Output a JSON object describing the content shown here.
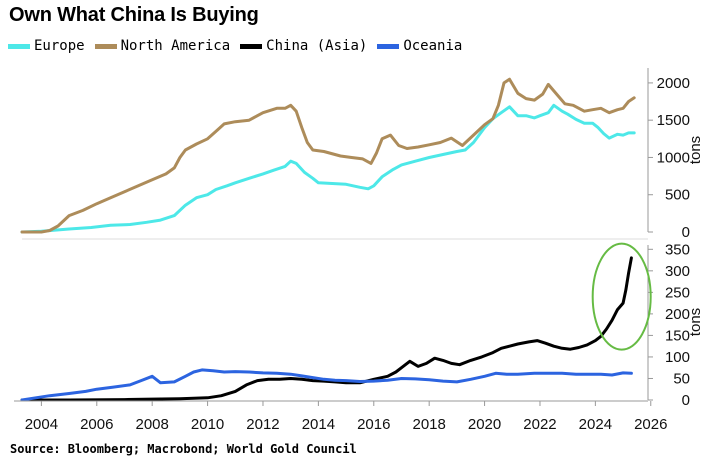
{
  "header": {
    "title": "Own What China Is Buying"
  },
  "footer": {
    "source": "Source: Bloomberg; Macrobond; World Gold Council"
  },
  "chart_data": [
    {
      "type": "line",
      "title": "Own What China Is Buying",
      "ylabel": "tons",
      "ylim": [
        0,
        2200
      ],
      "xlim": [
        2003.3,
        2025.9
      ],
      "yticks": [
        0,
        500,
        1000,
        1500,
        2000
      ],
      "grid": false,
      "legend_position": "top-left",
      "series": [
        {
          "name": "Europe",
          "color": "#4de8e8",
          "points": [
            [
              2003.3,
              0
            ],
            [
              2004.0,
              10
            ],
            [
              2005.0,
              40
            ],
            [
              2005.8,
              60
            ],
            [
              2006.5,
              90
            ],
            [
              2007.2,
              100
            ],
            [
              2007.8,
              130
            ],
            [
              2008.3,
              160
            ],
            [
              2008.8,
              220
            ],
            [
              2009.2,
              360
            ],
            [
              2009.6,
              460
            ],
            [
              2010.0,
              500
            ],
            [
              2010.3,
              570
            ],
            [
              2010.7,
              620
            ],
            [
              2011.0,
              660
            ],
            [
              2011.5,
              720
            ],
            [
              2012.0,
              780
            ],
            [
              2012.4,
              830
            ],
            [
              2012.8,
              880
            ],
            [
              2013.0,
              950
            ],
            [
              2013.2,
              920
            ],
            [
              2013.5,
              800
            ],
            [
              2013.8,
              720
            ],
            [
              2014.0,
              660
            ],
            [
              2014.5,
              650
            ],
            [
              2015.0,
              640
            ],
            [
              2015.5,
              600
            ],
            [
              2015.8,
              580
            ],
            [
              2016.0,
              620
            ],
            [
              2016.3,
              740
            ],
            [
              2016.7,
              840
            ],
            [
              2017.0,
              900
            ],
            [
              2017.5,
              950
            ],
            [
              2018.0,
              1000
            ],
            [
              2018.5,
              1040
            ],
            [
              2019.0,
              1080
            ],
            [
              2019.3,
              1100
            ],
            [
              2019.6,
              1200
            ],
            [
              2020.0,
              1400
            ],
            [
              2020.3,
              1520
            ],
            [
              2020.6,
              1600
            ],
            [
              2020.9,
              1680
            ],
            [
              2021.2,
              1560
            ],
            [
              2021.5,
              1560
            ],
            [
              2021.8,
              1530
            ],
            [
              2022.0,
              1560
            ],
            [
              2022.3,
              1600
            ],
            [
              2022.5,
              1700
            ],
            [
              2022.8,
              1620
            ],
            [
              2023.0,
              1580
            ],
            [
              2023.3,
              1510
            ],
            [
              2023.6,
              1460
            ],
            [
              2023.9,
              1460
            ],
            [
              2024.1,
              1400
            ],
            [
              2024.3,
              1320
            ],
            [
              2024.5,
              1260
            ],
            [
              2024.8,
              1310
            ],
            [
              2025.0,
              1300
            ],
            [
              2025.2,
              1330
            ],
            [
              2025.4,
              1330
            ]
          ]
        },
        {
          "name": "North America",
          "color": "#ad8c5a",
          "points": [
            [
              2003.3,
              0
            ],
            [
              2004.0,
              0
            ],
            [
              2004.3,
              20
            ],
            [
              2004.6,
              80
            ],
            [
              2005.0,
              220
            ],
            [
              2005.5,
              290
            ],
            [
              2006.0,
              380
            ],
            [
              2006.5,
              460
            ],
            [
              2007.0,
              540
            ],
            [
              2007.5,
              620
            ],
            [
              2008.0,
              700
            ],
            [
              2008.5,
              780
            ],
            [
              2008.8,
              860
            ],
            [
              2009.0,
              1000
            ],
            [
              2009.2,
              1100
            ],
            [
              2009.6,
              1180
            ],
            [
              2010.0,
              1250
            ],
            [
              2010.3,
              1350
            ],
            [
              2010.6,
              1450
            ],
            [
              2011.0,
              1480
            ],
            [
              2011.5,
              1500
            ],
            [
              2011.8,
              1560
            ],
            [
              2012.0,
              1600
            ],
            [
              2012.5,
              1660
            ],
            [
              2012.8,
              1660
            ],
            [
              2013.0,
              1700
            ],
            [
              2013.2,
              1620
            ],
            [
              2013.4,
              1400
            ],
            [
              2013.6,
              1200
            ],
            [
              2013.8,
              1100
            ],
            [
              2014.2,
              1080
            ],
            [
              2014.8,
              1020
            ],
            [
              2015.2,
              1000
            ],
            [
              2015.6,
              980
            ],
            [
              2015.9,
              920
            ],
            [
              2016.1,
              1060
            ],
            [
              2016.3,
              1250
            ],
            [
              2016.6,
              1300
            ],
            [
              2016.9,
              1160
            ],
            [
              2017.2,
              1120
            ],
            [
              2017.6,
              1140
            ],
            [
              2018.0,
              1170
            ],
            [
              2018.4,
              1200
            ],
            [
              2018.8,
              1260
            ],
            [
              2019.2,
              1160
            ],
            [
              2019.6,
              1300
            ],
            [
              2020.0,
              1440
            ],
            [
              2020.3,
              1520
            ],
            [
              2020.5,
              1700
            ],
            [
              2020.7,
              2000
            ],
            [
              2020.9,
              2050
            ],
            [
              2021.2,
              1860
            ],
            [
              2021.5,
              1790
            ],
            [
              2021.8,
              1770
            ],
            [
              2022.1,
              1850
            ],
            [
              2022.3,
              1980
            ],
            [
              2022.6,
              1850
            ],
            [
              2022.9,
              1720
            ],
            [
              2023.2,
              1700
            ],
            [
              2023.6,
              1620
            ],
            [
              2023.9,
              1640
            ],
            [
              2024.2,
              1660
            ],
            [
              2024.5,
              1600
            ],
            [
              2024.8,
              1640
            ],
            [
              2025.0,
              1660
            ],
            [
              2025.2,
              1750
            ],
            [
              2025.4,
              1800
            ]
          ]
        }
      ]
    },
    {
      "type": "line",
      "ylabel": "tons",
      "ylim": [
        0,
        360
      ],
      "xlim": [
        2003.3,
        2025.9
      ],
      "yticks": [
        0,
        50,
        100,
        150,
        200,
        250,
        300,
        350
      ],
      "xticks": [
        2004,
        2006,
        2008,
        2010,
        2012,
        2014,
        2016,
        2018,
        2020,
        2022,
        2024,
        2026
      ],
      "grid": false,
      "annotation": "green ellipse highlighting China (Asia) surge 2024-2025",
      "series": [
        {
          "name": "China (Asia)",
          "color": "#000000",
          "points": [
            [
              2003.3,
              0
            ],
            [
              2005.0,
              0
            ],
            [
              2007.0,
              1
            ],
            [
              2008.0,
              2
            ],
            [
              2009.0,
              3
            ],
            [
              2010.0,
              5
            ],
            [
              2010.5,
              10
            ],
            [
              2011.0,
              20
            ],
            [
              2011.4,
              35
            ],
            [
              2011.8,
              45
            ],
            [
              2012.2,
              48
            ],
            [
              2012.6,
              48
            ],
            [
              2013.0,
              50
            ],
            [
              2013.4,
              48
            ],
            [
              2013.8,
              45
            ],
            [
              2014.2,
              44
            ],
            [
              2014.6,
              42
            ],
            [
              2015.0,
              40
            ],
            [
              2015.5,
              40
            ],
            [
              2016.0,
              48
            ],
            [
              2016.5,
              55
            ],
            [
              2016.8,
              65
            ],
            [
              2017.0,
              75
            ],
            [
              2017.3,
              90
            ],
            [
              2017.6,
              78
            ],
            [
              2017.9,
              85
            ],
            [
              2018.2,
              97
            ],
            [
              2018.5,
              92
            ],
            [
              2018.8,
              85
            ],
            [
              2019.1,
              82
            ],
            [
              2019.5,
              92
            ],
            [
              2019.9,
              100
            ],
            [
              2020.3,
              110
            ],
            [
              2020.6,
              120
            ],
            [
              2020.9,
              125
            ],
            [
              2021.2,
              130
            ],
            [
              2021.6,
              135
            ],
            [
              2021.9,
              138
            ],
            [
              2022.2,
              132
            ],
            [
              2022.5,
              125
            ],
            [
              2022.8,
              120
            ],
            [
              2023.1,
              118
            ],
            [
              2023.4,
              122
            ],
            [
              2023.7,
              128
            ],
            [
              2024.0,
              138
            ],
            [
              2024.2,
              148
            ],
            [
              2024.4,
              165
            ],
            [
              2024.6,
              185
            ],
            [
              2024.8,
              210
            ],
            [
              2025.0,
              225
            ],
            [
              2025.1,
              255
            ],
            [
              2025.2,
              295
            ],
            [
              2025.3,
              330
            ]
          ]
        },
        {
          "name": "Oceania",
          "color": "#2c64e0",
          "points": [
            [
              2003.3,
              0
            ],
            [
              2003.8,
              5
            ],
            [
              2004.3,
              10
            ],
            [
              2005.0,
              15
            ],
            [
              2005.6,
              20
            ],
            [
              2006.0,
              25
            ],
            [
              2006.6,
              30
            ],
            [
              2007.2,
              35
            ],
            [
              2007.6,
              45
            ],
            [
              2008.0,
              55
            ],
            [
              2008.3,
              40
            ],
            [
              2008.8,
              42
            ],
            [
              2009.2,
              55
            ],
            [
              2009.5,
              65
            ],
            [
              2009.8,
              70
            ],
            [
              2010.2,
              68
            ],
            [
              2010.6,
              65
            ],
            [
              2011.0,
              66
            ],
            [
              2011.5,
              65
            ],
            [
              2012.0,
              63
            ],
            [
              2012.5,
              62
            ],
            [
              2013.0,
              60
            ],
            [
              2013.4,
              56
            ],
            [
              2013.8,
              52
            ],
            [
              2014.2,
              48
            ],
            [
              2014.6,
              46
            ],
            [
              2015.0,
              45
            ],
            [
              2015.5,
              43
            ],
            [
              2016.0,
              44
            ],
            [
              2016.5,
              46
            ],
            [
              2017.0,
              50
            ],
            [
              2017.5,
              49
            ],
            [
              2018.0,
              47
            ],
            [
              2018.5,
              44
            ],
            [
              2019.0,
              42
            ],
            [
              2019.5,
              48
            ],
            [
              2020.0,
              55
            ],
            [
              2020.4,
              62
            ],
            [
              2020.8,
              60
            ],
            [
              2021.2,
              60
            ],
            [
              2021.8,
              62
            ],
            [
              2022.3,
              62
            ],
            [
              2022.8,
              62
            ],
            [
              2023.3,
              60
            ],
            [
              2023.8,
              60
            ],
            [
              2024.2,
              60
            ],
            [
              2024.6,
              58
            ],
            [
              2025.0,
              63
            ],
            [
              2025.3,
              62
            ]
          ]
        }
      ]
    }
  ],
  "colors": {
    "axis": "#999999",
    "annotation_ellipse": "#66bb44"
  }
}
